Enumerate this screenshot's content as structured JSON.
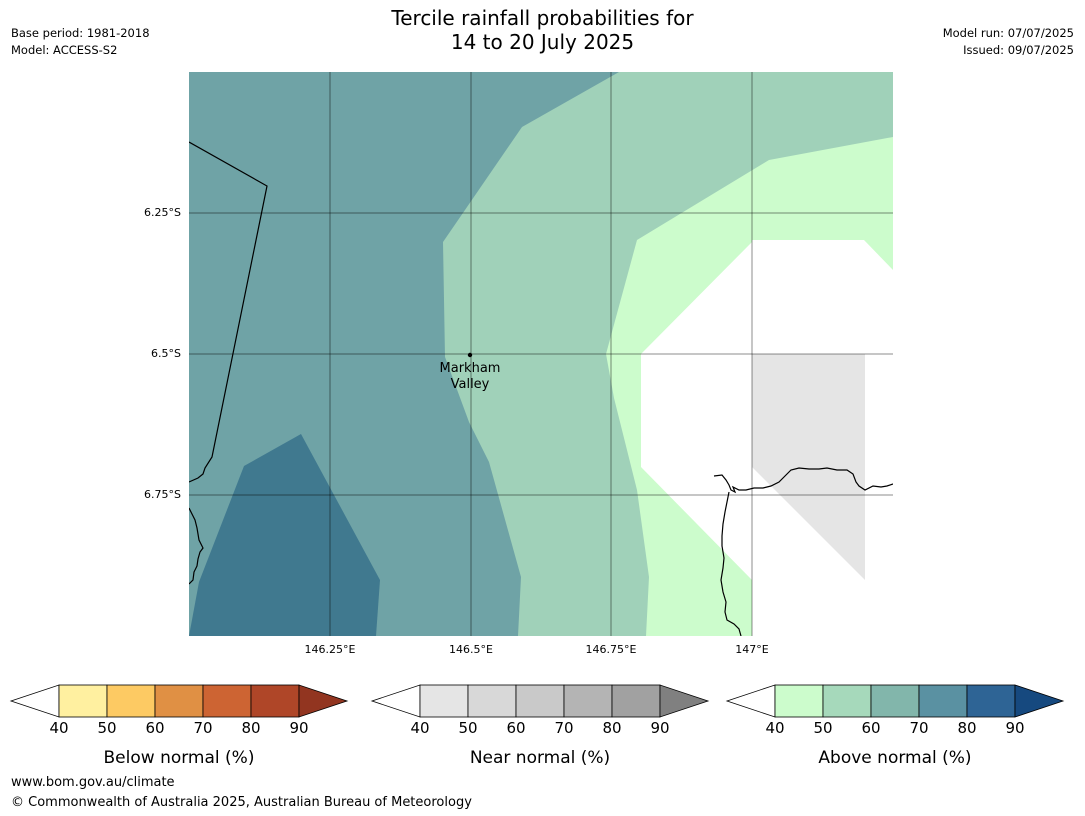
{
  "header": {
    "title_line1": "Tercile rainfall probabilities for",
    "title_line2": "14 to 20 July 2025",
    "base_period": "Base period: 1981-2018",
    "model": "Model: ACCESS-S2",
    "model_run": "Model run: 07/07/2025",
    "issued": "Issued: 09/07/2025"
  },
  "map": {
    "latitude_labels": [
      "6.25°S",
      "6.5°S",
      "6.75°S"
    ],
    "longitude_labels": [
      "146.25°E",
      "146.5°E",
      "146.75°E",
      "147°E"
    ],
    "place": {
      "name_line1": "Markham",
      "name_line2": "Valley"
    },
    "colors": {
      "above_70_80": "#40798f",
      "above_60_70": "#6fa3a6",
      "above_50_60": "#a0d1b9",
      "above_40_50": "#ccfccc",
      "near_40_50": "#e5e5e5",
      "none": "#ffffff"
    }
  },
  "legends": [
    {
      "name": "below",
      "label": "Below normal (%)",
      "ticks": [
        "40",
        "50",
        "60",
        "70",
        "80",
        "90"
      ],
      "colors": [
        "#fff0a0",
        "#fdca63",
        "#e09044",
        "#cd6433",
        "#af4628",
        "#923520"
      ]
    },
    {
      "name": "near",
      "label": "Near normal (%)",
      "ticks": [
        "40",
        "50",
        "60",
        "70",
        "80",
        "90"
      ],
      "colors": [
        "#e5e5e5",
        "#d8d8d8",
        "#c9c9c9",
        "#b4b4b4",
        "#a1a1a1",
        "#808080"
      ]
    },
    {
      "name": "above",
      "label": "Above normal (%)",
      "ticks": [
        "40",
        "50",
        "60",
        "70",
        "80",
        "90"
      ],
      "colors": [
        "#ccfccc",
        "#a6d9bb",
        "#82b6ab",
        "#5a91a2",
        "#2e6495",
        "#16497f"
      ]
    }
  ],
  "footer": {
    "url": "www.bom.gov.au/climate",
    "copyright": "© Commonwealth of Australia 2025, Australian Bureau of Meteorology"
  }
}
